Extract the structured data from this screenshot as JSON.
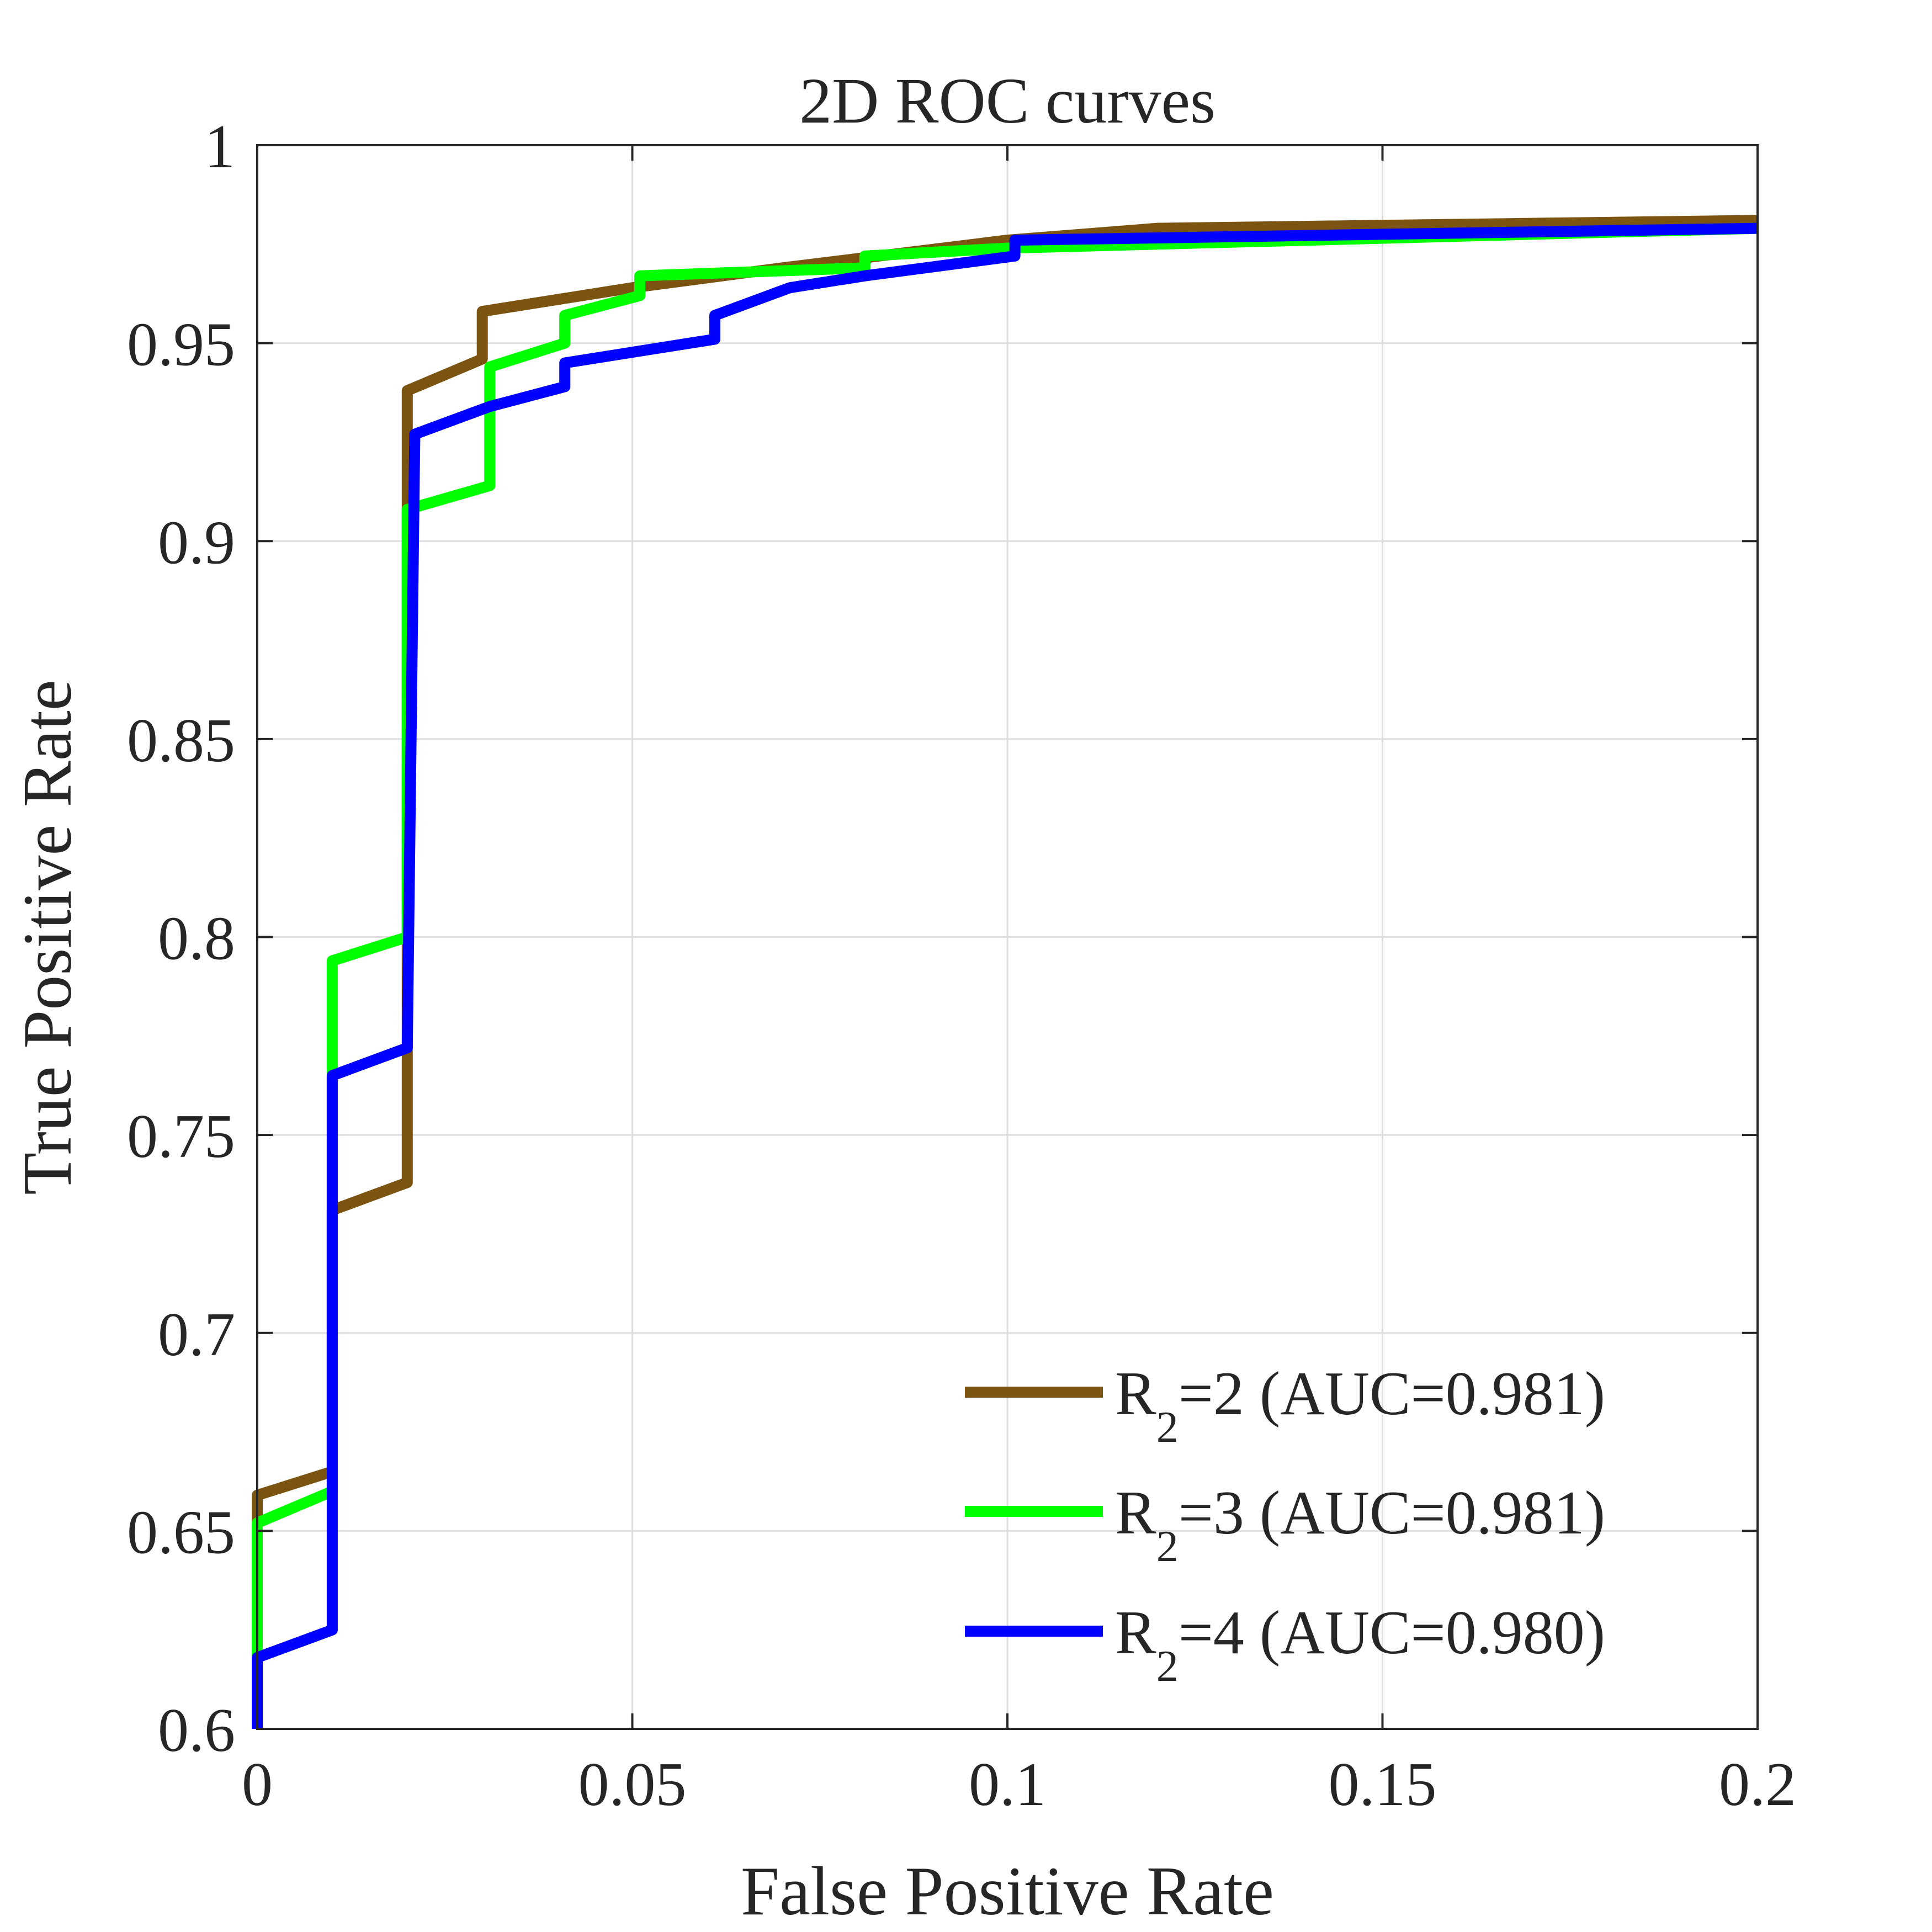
{
  "chart_data": {
    "type": "line",
    "title": "2D ROC curves",
    "xlabel": "False Positive Rate",
    "ylabel": "True Positive Rate",
    "xlim": [
      0,
      0.2
    ],
    "ylim": [
      0.6,
      1
    ],
    "xticks": [
      0,
      0.05,
      0.1,
      0.15,
      0.2
    ],
    "xtick_labels": [
      "0",
      "0.05",
      "0.1",
      "0.15",
      "0.2"
    ],
    "yticks": [
      0.6,
      0.65,
      0.7,
      0.75,
      0.8,
      0.85,
      0.9,
      0.95,
      1
    ],
    "ytick_labels": [
      "0.6",
      "0.65",
      "0.7",
      "0.75",
      "0.8",
      "0.85",
      "0.9",
      "0.95",
      "1"
    ],
    "grid": true,
    "legend_position": "bottom-right",
    "series": [
      {
        "name_main": "R",
        "name_sub": "2",
        "name_rest": "=2 (AUC=0.981)",
        "color": "#7a5410",
        "x": [
          0,
          0,
          0.01,
          0.01,
          0.02,
          0.02,
          0.03,
          0.03,
          0.05,
          0.07,
          0.1,
          0.12,
          0.2
        ],
        "y": [
          0.6,
          0.659,
          0.665,
          0.731,
          0.738,
          0.938,
          0.946,
          0.958,
          0.964,
          0.969,
          0.976,
          0.979,
          0.981
        ]
      },
      {
        "name_main": "R",
        "name_sub": "2",
        "name_rest": "=3 (AUC=0.981)",
        "color": "#00ff00",
        "x": [
          0,
          0,
          0.01,
          0.01,
          0.02,
          0.02,
          0.031,
          0.031,
          0.041,
          0.041,
          0.051,
          0.051,
          0.081,
          0.081,
          0.1,
          0.2
        ],
        "y": [
          0.6,
          0.652,
          0.66,
          0.794,
          0.8,
          0.908,
          0.914,
          0.944,
          0.95,
          0.957,
          0.962,
          0.967,
          0.969,
          0.972,
          0.974,
          0.979
        ]
      },
      {
        "name_main": "R",
        "name_sub": "2",
        "name_rest": "=4 (AUC=0.980)",
        "color": "#0000ff",
        "x": [
          0,
          0,
          0.01,
          0.01,
          0.02,
          0.021,
          0.031,
          0.041,
          0.041,
          0.061,
          0.061,
          0.071,
          0.081,
          0.101,
          0.101,
          0.2
        ],
        "y": [
          0.6,
          0.618,
          0.625,
          0.765,
          0.772,
          0.927,
          0.934,
          0.939,
          0.945,
          0.951,
          0.957,
          0.964,
          0.967,
          0.972,
          0.976,
          0.979
        ]
      }
    ]
  }
}
